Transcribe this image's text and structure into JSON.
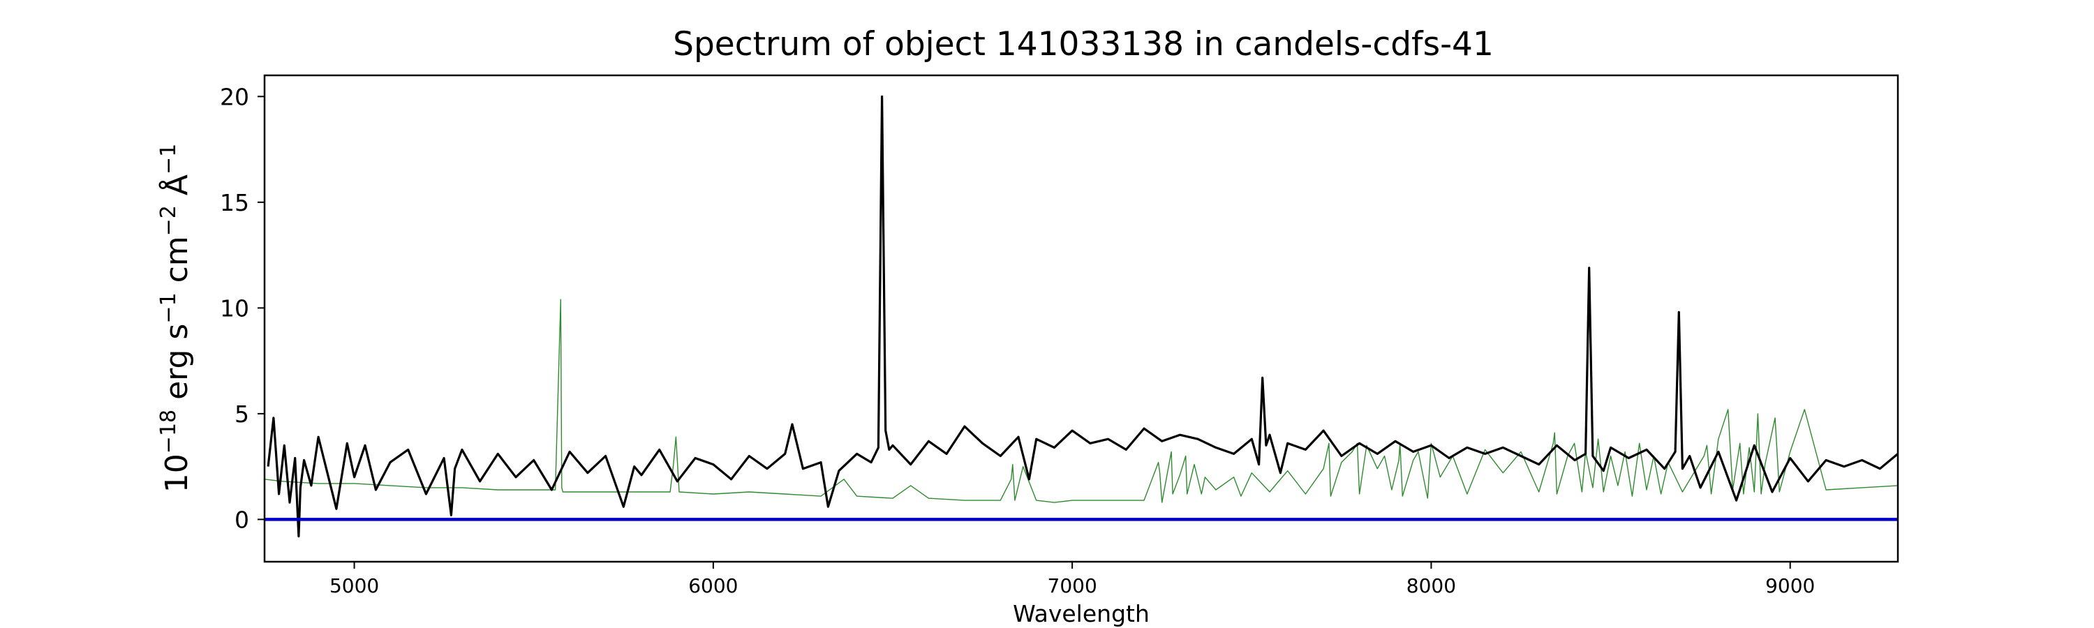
{
  "chart_data": {
    "type": "line",
    "title": "Spectrum of object 141033138 in candels-cdfs-41",
    "xlabel": "Wavelength",
    "ylabel": {
      "base": "10",
      "exp1": "−18",
      "mid1": " erg s",
      "exp2": "−1",
      "mid2": " cm",
      "exp3": "−2",
      "mid3": " Å",
      "exp4": "−1"
    },
    "xlim": [
      4750,
      9300
    ],
    "ylim": [
      -2,
      21
    ],
    "xticks": [
      5000,
      6000,
      7000,
      8000,
      9000
    ],
    "xtick_labels": [
      "5000",
      "6000",
      "7000",
      "8000",
      "9000"
    ],
    "yticks": [
      0,
      5,
      10,
      15,
      20
    ],
    "ytick_labels": [
      "0",
      "5",
      "10",
      "15",
      "20"
    ],
    "grid": false,
    "colors": {
      "spectrum": "#000000",
      "sky": "#2e8b2e",
      "zero": "#0000cc"
    },
    "series": [
      {
        "name": "",
        "role": "spectrum",
        "x": [
          4760,
          4775,
          4790,
          4805,
          4820,
          4835,
          4845,
          4850,
          4860,
          4880,
          4900,
          4925,
          4950,
          4980,
          5000,
          5030,
          5060,
          5100,
          5150,
          5200,
          5250,
          5270,
          5280,
          5300,
          5350,
          5400,
          5450,
          5500,
          5550,
          5600,
          5650,
          5700,
          5750,
          5780,
          5800,
          5850,
          5900,
          5950,
          6000,
          6050,
          6100,
          6150,
          6200,
          6220,
          6250,
          6300,
          6320,
          6350,
          6400,
          6440,
          6460,
          6470,
          6480,
          6490,
          6500,
          6550,
          6600,
          6650,
          6700,
          6750,
          6800,
          6850,
          6880,
          6900,
          6950,
          7000,
          7050,
          7100,
          7150,
          7200,
          7250,
          7300,
          7350,
          7400,
          7450,
          7500,
          7520,
          7530,
          7540,
          7550,
          7580,
          7600,
          7650,
          7700,
          7750,
          7800,
          7850,
          7900,
          7950,
          8000,
          8050,
          8100,
          8150,
          8200,
          8250,
          8300,
          8350,
          8400,
          8430,
          8440,
          8450,
          8480,
          8500,
          8550,
          8600,
          8650,
          8680,
          8690,
          8700,
          8720,
          8750,
          8800,
          8850,
          8900,
          8950,
          9000,
          9050,
          9100,
          9150,
          9200,
          9250,
          9300
        ],
        "y": [
          2.5,
          4.8,
          1.2,
          3.5,
          0.8,
          2.9,
          -0.8,
          1.5,
          2.8,
          1.6,
          3.9,
          2.2,
          0.5,
          3.6,
          2.0,
          3.5,
          1.4,
          2.7,
          3.3,
          1.2,
          2.9,
          0.2,
          2.4,
          3.3,
          1.8,
          3.1,
          2.0,
          2.8,
          1.4,
          3.2,
          2.2,
          3.0,
          0.6,
          2.5,
          2.1,
          3.3,
          1.8,
          2.9,
          2.6,
          1.9,
          3.0,
          2.4,
          3.1,
          4.5,
          2.4,
          2.7,
          0.6,
          2.3,
          3.1,
          2.7,
          3.4,
          20.0,
          4.2,
          3.3,
          3.5,
          2.6,
          3.7,
          3.1,
          4.4,
          3.6,
          3.0,
          3.9,
          1.9,
          3.8,
          3.4,
          4.2,
          3.6,
          3.8,
          3.3,
          4.3,
          3.7,
          4.0,
          3.8,
          3.4,
          3.1,
          3.8,
          2.6,
          6.7,
          3.5,
          4.0,
          2.2,
          3.6,
          3.3,
          4.2,
          3.0,
          3.6,
          3.1,
          3.7,
          3.2,
          3.5,
          2.9,
          3.4,
          3.1,
          3.4,
          3.0,
          2.6,
          3.5,
          2.8,
          3.1,
          11.9,
          3.0,
          2.3,
          3.4,
          2.9,
          3.3,
          2.4,
          3.2,
          9.8,
          2.4,
          3.0,
          1.5,
          3.2,
          0.9,
          3.5,
          1.3,
          2.9,
          1.8,
          2.8,
          2.5,
          2.8,
          2.4,
          3.1
        ]
      },
      {
        "name": "",
        "role": "sky",
        "x": [
          4750,
          4800,
          4900,
          5000,
          5100,
          5200,
          5300,
          5400,
          5500,
          5560,
          5575,
          5578,
          5581,
          5595,
          5700,
          5800,
          5880,
          5889,
          5896,
          5905,
          6000,
          6100,
          6200,
          6300,
          6364,
          6400,
          6500,
          6550,
          6600,
          6700,
          6800,
          6830,
          6834,
          6840,
          6863,
          6900,
          6950,
          7000,
          7100,
          7200,
          7240,
          7244,
          7250,
          7276,
          7280,
          7300,
          7316,
          7320,
          7340,
          7360,
          7370,
          7400,
          7450,
          7470,
          7500,
          7550,
          7600,
          7650,
          7700,
          7715,
          7720,
          7750,
          7780,
          7794,
          7800,
          7820,
          7850,
          7870,
          7890,
          7910,
          7913,
          7920,
          7950,
          7964,
          7990,
          8000,
          8025,
          8060,
          8100,
          8150,
          8200,
          8250,
          8300,
          8340,
          8344,
          8350,
          8380,
          8399,
          8420,
          8430,
          8450,
          8465,
          8480,
          8500,
          8520,
          8540,
          8560,
          8580,
          8600,
          8620,
          8640,
          8660,
          8700,
          8760,
          8768,
          8780,
          8800,
          8827,
          8840,
          8860,
          8870,
          8886,
          8900,
          8910,
          8919,
          8930,
          8958,
          8970,
          9000,
          9040,
          9100,
          9200,
          9300
        ],
        "y": [
          1.9,
          1.8,
          1.7,
          1.7,
          1.6,
          1.5,
          1.5,
          1.4,
          1.4,
          1.4,
          10.4,
          1.5,
          1.3,
          1.3,
          1.3,
          1.3,
          1.3,
          2.6,
          3.9,
          1.3,
          1.2,
          1.3,
          1.2,
          1.1,
          1.9,
          1.1,
          1.0,
          1.6,
          1.0,
          0.9,
          0.9,
          1.9,
          2.6,
          0.9,
          2.5,
          0.9,
          0.8,
          0.9,
          0.9,
          0.9,
          2.7,
          2.2,
          0.8,
          3.2,
          1.2,
          2.1,
          3.0,
          1.2,
          2.6,
          1.2,
          2.0,
          1.4,
          2.0,
          1.1,
          2.2,
          1.3,
          2.3,
          1.2,
          2.4,
          3.6,
          1.1,
          2.7,
          3.2,
          3.6,
          1.2,
          3.5,
          2.4,
          3.0,
          1.4,
          2.8,
          3.6,
          1.1,
          2.8,
          3.2,
          1.0,
          3.6,
          2.0,
          3.0,
          1.2,
          3.3,
          2.2,
          3.2,
          1.3,
          3.6,
          4.1,
          1.2,
          3.0,
          3.6,
          1.3,
          3.2,
          1.5,
          3.8,
          1.3,
          3.0,
          1.6,
          3.2,
          1.1,
          3.6,
          1.4,
          3.0,
          1.2,
          2.7,
          1.3,
          3.0,
          3.5,
          1.2,
          3.8,
          5.2,
          1.4,
          3.6,
          1.2,
          3.4,
          1.3,
          5.0,
          1.2,
          2.6,
          4.8,
          1.3,
          3.2,
          5.2,
          1.4,
          1.5,
          1.6
        ]
      },
      {
        "name": "",
        "role": "zero",
        "x": [
          4750,
          9300
        ],
        "y": [
          0,
          0
        ]
      }
    ]
  }
}
